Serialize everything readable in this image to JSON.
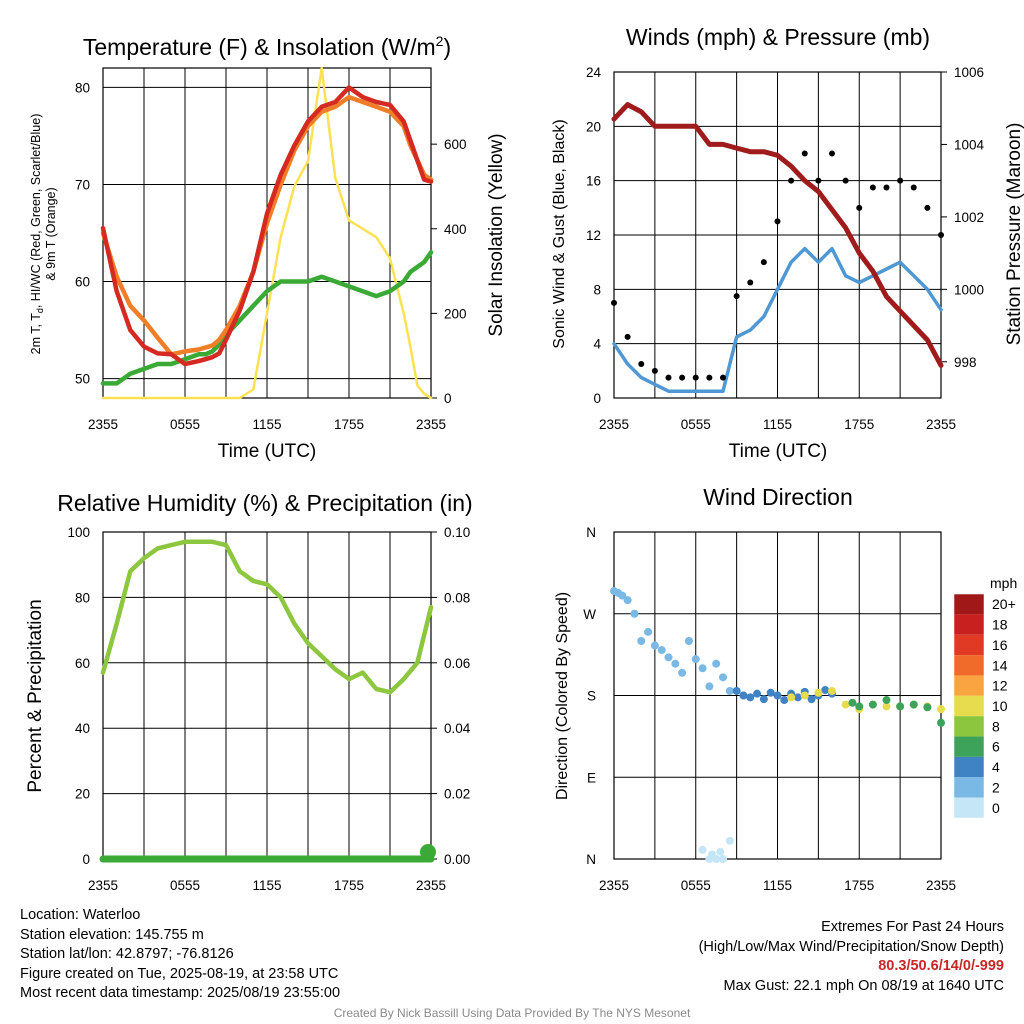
{
  "colors": {
    "red": "#d42a22",
    "orange": "#f07e28",
    "green": "#3aa935",
    "yellow": "#fde154",
    "blue": "#4f98d4",
    "black": "#000000",
    "maroon": "#a01c1c",
    "rh": "#8dc63f",
    "precip": "#3aa935",
    "extreme": "#c62828"
  },
  "panels": {
    "temperature": {
      "title": "Temperature (F) & Insolation (W/m",
      "title_sup": "2",
      "title_close": ")",
      "ylabel_line1": "2m T, T",
      "ylabel_sub": "d",
      "ylabel_line1b": ", HI/WC (Red, Green, Scarlet/Blue)",
      "ylabel_line2": "& 9m T (Orange)",
      "y2label": "Solar Insolation (Yellow)",
      "xlabel": "Time (UTC)"
    },
    "winds": {
      "title": "Winds (mph) & Pressure (mb)",
      "ylabel": "Sonic Wind & Gust (Blue, Black)",
      "y2label": "Station Pressure (Maroon)",
      "xlabel": "Time (UTC)"
    },
    "humidity": {
      "title": "Relative Humidity (%) & Precipitation (in)",
      "ylabel": "Percent & Precipitation"
    },
    "direction": {
      "title": "Wind Direction",
      "ylabel": "Direction (Colored By Speed)",
      "legend_title": "mph"
    }
  },
  "chart_data": [
    {
      "type": "line",
      "title": "Temperature (F) & Insolation (W/m2)",
      "xlabel": "Time (UTC)",
      "ylabel": "2m T, Td, HI/WC (Red, Green, Scarlet/Blue) & 9m T (Orange)",
      "y2label": "Solar Insolation (Yellow)",
      "x_ticks": [
        "2355",
        "0555",
        "1155",
        "1755",
        "2355"
      ],
      "ylim": [
        48,
        82
      ],
      "y_ticks": [
        50,
        60,
        70,
        80
      ],
      "y2lim": [
        0,
        780
      ],
      "y2_ticks": [
        0,
        200,
        400,
        600
      ],
      "x_hours": [
        0,
        1,
        2,
        3,
        4,
        5,
        6,
        7,
        7.5,
        8,
        8.5,
        9,
        10,
        11,
        12,
        13,
        14,
        15,
        16,
        17,
        18,
        19,
        20,
        21,
        22,
        22.5,
        23,
        23.5,
        24
      ],
      "series": [
        {
          "name": "2m T (Red)",
          "color": "red",
          "values": [
            65.5,
            59,
            55,
            53.3,
            52.6,
            52.5,
            51.5,
            51.8,
            52,
            52.2,
            52.6,
            54,
            57,
            61,
            67,
            71,
            74,
            76.5,
            78,
            78.5,
            80,
            79,
            78.5,
            78.2,
            76.5,
            74.5,
            72.5,
            70.5,
            70.3
          ]
        },
        {
          "name": "9m T (Orange)",
          "color": "orange",
          "values": [
            65,
            60.5,
            57.5,
            56,
            54.2,
            52.5,
            52.8,
            53,
            53.2,
            53.4,
            54,
            55,
            57.5,
            61,
            66,
            70,
            73.5,
            76,
            77.5,
            78,
            79,
            78.5,
            78,
            77.5,
            76,
            74,
            72.5,
            71,
            70.5
          ]
        },
        {
          "name": "Td (Green)",
          "color": "green",
          "values": [
            49.5,
            49.5,
            50.5,
            51,
            51.5,
            51.5,
            52,
            52.5,
            52.5,
            52.8,
            53.5,
            54.5,
            56,
            57.5,
            59,
            60,
            60,
            60,
            60.5,
            60,
            59.5,
            59,
            58.5,
            59,
            60,
            61,
            61.5,
            62,
            63
          ]
        },
        {
          "name": "Solar Insolation (Yellow)",
          "color": "yellow",
          "axis": "y2",
          "values": [
            0,
            0,
            0,
            0,
            0,
            0,
            0,
            0,
            0,
            0,
            0,
            0,
            0,
            20,
            200,
            380,
            500,
            560,
            780,
            520,
            420,
            400,
            380,
            330,
            200,
            120,
            30,
            10,
            0
          ]
        }
      ]
    },
    {
      "type": "line",
      "title": "Winds (mph) & Pressure (mb)",
      "xlabel": "Time (UTC)",
      "ylabel": "Sonic Wind & Gust (Blue, Black)",
      "y2label": "Station Pressure (Maroon)",
      "x_ticks": [
        "2355",
        "0555",
        "1155",
        "1755",
        "2355"
      ],
      "ylim": [
        0,
        24
      ],
      "y_ticks": [
        0,
        4,
        8,
        12,
        16,
        20,
        24
      ],
      "y2lim": [
        997,
        1006
      ],
      "y2_ticks": [
        998,
        1000,
        1002,
        1004,
        1006
      ],
      "x_hours": [
        0,
        1,
        2,
        3,
        4,
        5,
        6,
        7,
        8,
        9,
        10,
        11,
        12,
        13,
        14,
        15,
        16,
        17,
        18,
        19,
        20,
        21,
        22,
        23,
        24
      ],
      "series": [
        {
          "name": "Sonic Wind (Blue)",
          "color": "blue",
          "values": [
            4,
            2.5,
            1.5,
            1,
            0.5,
            0.5,
            0.5,
            0.5,
            0.5,
            4.5,
            5,
            6,
            8,
            10,
            11,
            10,
            11,
            9,
            8.5,
            9,
            9.5,
            10,
            9,
            8,
            6.5
          ]
        },
        {
          "name": "Gust (Black)",
          "color": "black",
          "values": [
            7,
            4.5,
            2.5,
            2,
            1.5,
            1.5,
            1.5,
            1.5,
            1.5,
            7.5,
            8.5,
            10,
            13,
            16,
            18,
            16,
            18,
            16,
            14,
            15.5,
            15.5,
            16,
            15.5,
            14,
            12
          ]
        },
        {
          "name": "Station Pressure (Maroon)",
          "color": "maroon",
          "axis": "y2",
          "values": [
            1004.7,
            1005.1,
            1004.9,
            1004.5,
            1004.5,
            1004.5,
            1004.5,
            1004.0,
            1004.0,
            1003.9,
            1003.8,
            1003.8,
            1003.7,
            1003.4,
            1003.0,
            1002.7,
            1002.2,
            1001.7,
            1001.0,
            1000.5,
            999.8,
            999.4,
            999.0,
            998.6,
            997.9
          ]
        }
      ]
    },
    {
      "type": "line",
      "title": "Relative Humidity (%) & Precipitation (in)",
      "ylabel": "Percent & Precipitation",
      "x_ticks": [
        "2355",
        "0555",
        "1155",
        "1755",
        "2355"
      ],
      "ylim": [
        0,
        100
      ],
      "y_ticks": [
        0,
        20,
        40,
        60,
        80,
        100
      ],
      "y2lim": [
        0,
        0.1
      ],
      "y2_ticks": [
        "0.00",
        "0.02",
        "0.04",
        "0.06",
        "0.08",
        "0.10"
      ],
      "x_hours": [
        0,
        1,
        2,
        3,
        4,
        5,
        6,
        7,
        8,
        9,
        10,
        11,
        12,
        13,
        14,
        15,
        16,
        17,
        18,
        19,
        20,
        21,
        22,
        23,
        24
      ],
      "series": [
        {
          "name": "Relative Humidity",
          "color": "rh",
          "values": [
            57,
            72,
            88,
            92,
            95,
            96,
            97,
            97,
            97,
            96,
            88,
            85,
            84,
            80,
            72,
            66,
            62,
            58,
            55,
            57,
            52,
            51,
            55,
            60,
            77
          ]
        },
        {
          "name": "Precipitation",
          "color": "precip",
          "axis": "y2",
          "values": [
            0,
            0,
            0,
            0,
            0,
            0,
            0,
            0,
            0,
            0,
            0,
            0,
            0,
            0,
            0,
            0,
            0,
            0,
            0,
            0,
            0,
            0,
            0,
            0,
            0
          ]
        }
      ]
    },
    {
      "type": "scatter",
      "title": "Wind Direction",
      "ylabel": "Direction (Colored By Speed)",
      "x_ticks": [
        "2355",
        "0555",
        "1155",
        "1755",
        "2355"
      ],
      "y_ticks": [
        "N",
        "E",
        "S",
        "W",
        "N"
      ],
      "ylim": [
        0,
        360
      ],
      "legend": {
        "title": "mph",
        "labels": [
          "20+",
          "18",
          "16",
          "14",
          "12",
          "10",
          "8",
          "6",
          "4",
          "2",
          "0"
        ],
        "colors": [
          "#a01818",
          "#c8201e",
          "#e03a25",
          "#f06a2a",
          "#f9a440",
          "#e6dc4e",
          "#8cc63f",
          "#3ea35a",
          "#3f83c4",
          "#7ab8e6",
          "#c5e6f7"
        ]
      },
      "groups": [
        {
          "hours": [
            0,
            0.3,
            0.6,
            1,
            1.5,
            2,
            2.5,
            3,
            3.5,
            4,
            4.5,
            5,
            5.5,
            6,
            6.5,
            7,
            7.5,
            8,
            8.5
          ],
          "dirs": [
            295,
            293,
            290,
            285,
            270,
            240,
            250,
            235,
            230,
            222,
            215,
            205,
            240,
            220,
            210,
            190,
            215,
            200,
            185
          ],
          "speed": "2"
        },
        {
          "hours": [
            6.5,
            7,
            7.2,
            7.5,
            7.8,
            8,
            8.5
          ],
          "dirs": [
            10,
            0,
            5,
            0,
            8,
            0,
            20
          ],
          "speed": "0"
        },
        {
          "hours": [
            9,
            9.5,
            10,
            10.5,
            11,
            11.5,
            12,
            12.5,
            13,
            13.5,
            14,
            14.5,
            15,
            15.5,
            16
          ],
          "dirs": [
            185,
            180,
            178,
            182,
            176,
            183,
            180,
            175,
            182,
            178,
            184,
            176,
            180,
            186,
            182
          ],
          "speed": "4"
        },
        {
          "hours": [
            13,
            14,
            15,
            16,
            17,
            18,
            19,
            20,
            21,
            22,
            23,
            24
          ],
          "dirs": [
            178,
            180,
            183,
            185,
            170,
            165,
            170,
            168,
            168,
            170,
            168,
            165
          ],
          "speed": "10"
        },
        {
          "hours": [
            17.5,
            18,
            19,
            20,
            21,
            22,
            23,
            24
          ],
          "dirs": [
            172,
            168,
            170,
            175,
            168,
            170,
            167,
            150
          ],
          "speed": "6"
        }
      ]
    }
  ],
  "info_left": {
    "location": "Location: Waterloo",
    "elevation": "Station elevation: 145.755 m",
    "latlon": "Station lat/lon: 42.8797; -76.8126",
    "created": "Figure created on Tue, 2025-08-19, at 23:58 UTC",
    "recent": "Most recent data timestamp: 2025/08/19 23:55:00"
  },
  "info_right": {
    "extremes_title": "Extremes For Past 24 Hours",
    "extremes_sub": "(High/Low/Max Wind/Precipitation/Snow Depth)",
    "extremes_values": "80.3/50.6/14/0/-999",
    "max_gust": "Max Gust: 22.1 mph On 08/19 at 1640 UTC"
  },
  "credit": "Created By Nick Bassill Using Data Provided By The NYS Mesonet"
}
